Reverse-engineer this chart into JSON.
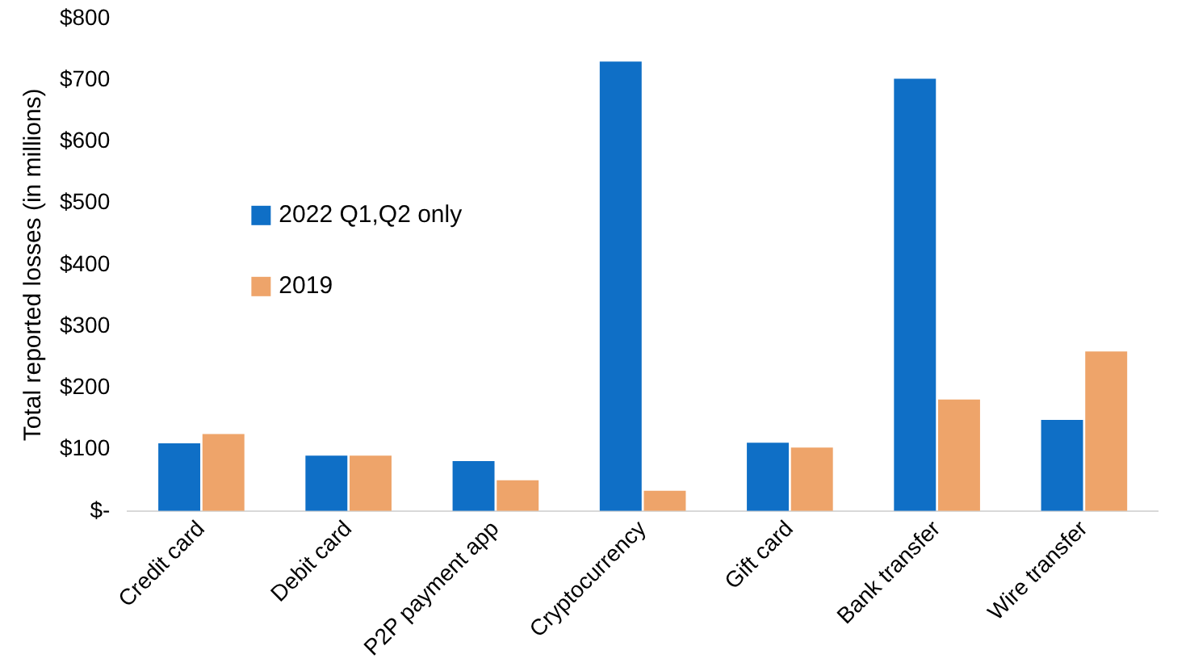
{
  "chart_data": {
    "type": "bar",
    "ylabel": "Total reported losses (in millions)",
    "categories": [
      "Credit card",
      "Debit card",
      "P2P payment app",
      "Cryptocurrency",
      "Gift card",
      "Bank transfer",
      "Wire transfer"
    ],
    "series": [
      {
        "name": "2022 Q1,Q2 only",
        "color": "#0f6fc6",
        "values": [
          110,
          90,
          81,
          730,
          111,
          702,
          148
        ]
      },
      {
        "name": "2019",
        "color": "#eea46a",
        "values": [
          125,
          90,
          50,
          33,
          103,
          181,
          259
        ]
      }
    ],
    "ylim": [
      0,
      800
    ],
    "yticks": [
      {
        "value": 0,
        "label": "$-"
      },
      {
        "value": 100,
        "label": "$100"
      },
      {
        "value": 200,
        "label": "$200"
      },
      {
        "value": 300,
        "label": "$300"
      },
      {
        "value": 400,
        "label": "$400"
      },
      {
        "value": 500,
        "label": "$500"
      },
      {
        "value": 600,
        "label": "$600"
      },
      {
        "value": 700,
        "label": "$700"
      },
      {
        "value": 800,
        "label": "$800"
      }
    ],
    "grid": false,
    "legend": "left"
  }
}
